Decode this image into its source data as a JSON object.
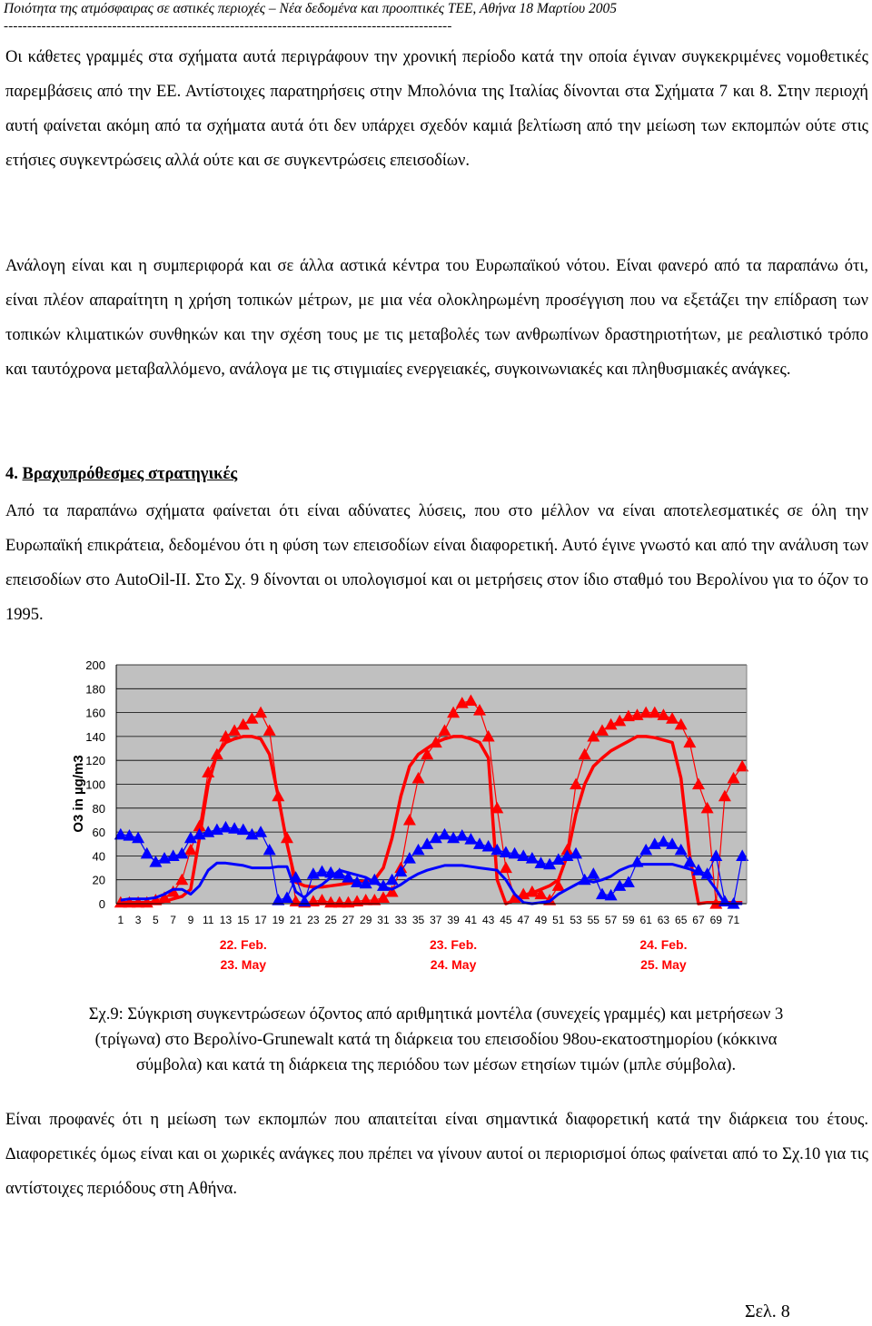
{
  "header": {
    "running_title": "Ποιότητα της ατμόσφαιρας σε αστικές περιοχές – Νέα δεδομένα και προοπτικές ΤΕΕ, Αθήνα 18 Μαρτίου 2005",
    "separator": "-----------------------------------------------------------------------------------------------"
  },
  "paragraphs": {
    "p1": "Οι κάθετες γραμμές στα σχήματα αυτά περιγράφουν την χρονική περίοδο κατά την οποία έγιναν συγκεκριμένες νομοθετικές παρεμβάσεις από την ΕΕ. Αντίστοιχες παρατηρήσεις στην Μπολόνια της Ιταλίας δίνονται στα Σχήματα 7 και 8. Στην περιοχή αυτή φαίνεται ακόμη από τα σχήματα αυτά ότι δεν υπάρχει σχεδόν καμιά βελτίωση από την μείωση των εκπομπών ούτε στις ετήσιες συγκεντρώσεις αλλά ούτε και σε συγκεντρώσεις επεισοδίων.",
    "p2": "Ανάλογη είναι και η συμπεριφορά και σε άλλα αστικά κέντρα του Ευρωπαϊκού νότου. Είναι φανερό από τα παραπάνω ότι, είναι πλέον απαραίτητη η χρήση τοπικών μέτρων, με μια νέα ολοκληρωμένη προσέγγιση που να εξετάζει την επίδραση των τοπικών κλιματικών συνθηκών και την σχέση τους με τις μεταβολές των ανθρωπίνων δραστηριοτήτων, με ρεαλιστικό τρόπο και ταυτόχρονα μεταβαλλόμενο, ανάλογα με τις στιγμιαίες ενεργειακές, συγκοινωνιακές και πληθυσμιακές ανάγκες.",
    "p3": "Από τα παραπάνω σχήματα φαίνεται ότι είναι αδύνατες λύσεις, που στο μέλλον να είναι αποτελεσματικές σε όλη την Ευρωπαϊκή επικράτεια, δεδομένου ότι η φύση των επεισοδίων είναι διαφορετική. Αυτό έγινε γνωστό και από την ανάλυση των επεισοδίων στο AutoOil-II. Στο Σχ. 9 δίνονται οι υπολογισμοί και οι μετρήσεις στον ίδιο σταθμό του Βερολίνου για το όζον το 1995.",
    "p4": "Είναι προφανές ότι η μείωση των εκπομπών που απαιτείται είναι σημαντικά διαφορετική κατά την διάρκεια του έτους. ∆ιαφορετικές όμως είναι και οι χωρικές ανάγκες που πρέπει να γίνουν αυτοί οι περιορισμοί όπως φαίνεται από το Σχ.10 για τις αντίστοιχες περιόδους στη Αθήνα."
  },
  "section": {
    "number": "4.",
    "title": "Βραχυπρόθεσμες στρατηγικές"
  },
  "figure": {
    "caption_line1": "Σχ.9: Σύγκριση συγκεντρώσεων  όζοντος από αριθμητικά μοντέλα (συνεχείς γραμμές) και μετρήσεων 3",
    "caption_line2": "(τρίγωνα) στο Βερολίνο-Grunewalt κατά τη διάρκεια του επεισοδίου 98ου-εκατοστημορίου (κόκκινα",
    "caption_line3": "σύμβολα) και κατά τη διάρκεια της περιόδου των μέσων ετησίων τιμών (μπλε σύμβολα)."
  },
  "page_number": "Σελ. 8",
  "colors": {
    "red": "#ff0000",
    "blue": "#0000ff",
    "plot_bg": "#c0c0c0"
  },
  "chart_data": {
    "type": "line",
    "title": "",
    "ylabel": "O3 in µg/m3",
    "xlabel": "",
    "ylim": [
      0,
      200
    ],
    "y_ticks": [
      0,
      20,
      40,
      60,
      80,
      100,
      120,
      140,
      160,
      180,
      200
    ],
    "x_tick_labels": [
      "1",
      "3",
      "5",
      "7",
      "9",
      "11",
      "13",
      "15",
      "17",
      "19",
      "21",
      "23",
      "25",
      "27",
      "29",
      "31",
      "33",
      "35",
      "37",
      "39",
      "41",
      "43",
      "45",
      "47",
      "49",
      "51",
      "53",
      "55",
      "57",
      "59",
      "61",
      "63",
      "65",
      "67",
      "69",
      "71"
    ],
    "date_labels": [
      {
        "x": 15,
        "red": "22. Feb.",
        "blue": "23. May"
      },
      {
        "x": 39,
        "red": "23. Feb.",
        "blue": "24. May"
      },
      {
        "x": 63,
        "red": "24. Feb.",
        "blue": "25. May"
      }
    ],
    "x": [
      1,
      2,
      3,
      4,
      5,
      6,
      7,
      8,
      9,
      10,
      11,
      12,
      13,
      14,
      15,
      16,
      17,
      18,
      19,
      20,
      21,
      22,
      23,
      24,
      25,
      26,
      27,
      28,
      29,
      30,
      31,
      32,
      33,
      34,
      35,
      36,
      37,
      38,
      39,
      40,
      41,
      42,
      43,
      44,
      45,
      46,
      47,
      48,
      49,
      50,
      51,
      52,
      53,
      54,
      55,
      56,
      57,
      58,
      59,
      60,
      61,
      62,
      63,
      64,
      65,
      66,
      67,
      68,
      69,
      70,
      71,
      72
    ],
    "series": [
      {
        "name": "red model",
        "color": "#ff0000",
        "style": "line",
        "width": 3.5,
        "values": [
          1,
          1,
          1,
          1,
          1,
          2,
          4,
          6,
          12,
          55,
          100,
          125,
          135,
          138,
          140,
          140,
          138,
          125,
          90,
          50,
          18,
          15,
          14,
          14,
          15,
          16,
          17,
          18,
          19,
          20,
          30,
          55,
          90,
          115,
          125,
          130,
          135,
          138,
          140,
          140,
          138,
          135,
          122,
          20,
          0,
          3,
          6,
          9,
          12,
          15,
          20,
          40,
          75,
          100,
          115,
          122,
          128,
          132,
          136,
          140,
          140,
          139,
          137,
          135,
          105,
          40,
          0,
          1,
          1,
          1,
          1,
          1
        ]
      },
      {
        "name": "red measured",
        "color": "#ff0000",
        "style": "triangle-line",
        "width": 1.2,
        "values": [
          1,
          1,
          1,
          1,
          3,
          5,
          10,
          20,
          45,
          65,
          110,
          125,
          140,
          145,
          150,
          155,
          160,
          145,
          90,
          55,
          2,
          1,
          2,
          3,
          1,
          1,
          1,
          2,
          3,
          3,
          5,
          10,
          30,
          70,
          105,
          125,
          135,
          145,
          160,
          168,
          170,
          162,
          140,
          80,
          30,
          5,
          8,
          10,
          8,
          3,
          15,
          45,
          100,
          125,
          140,
          145,
          150,
          153,
          157,
          158,
          160,
          160,
          158,
          155,
          150,
          135,
          100,
          80,
          0,
          90,
          105,
          115
        ]
      },
      {
        "name": "blue model",
        "color": "#0000ff",
        "style": "line",
        "width": 3,
        "values": [
          3,
          4,
          4,
          4,
          5,
          8,
          12,
          12,
          8,
          15,
          28,
          34,
          34,
          33,
          32,
          30,
          30,
          30,
          31,
          31,
          10,
          5,
          12,
          16,
          22,
          28,
          26,
          24,
          22,
          18,
          14,
          12,
          16,
          21,
          25,
          28,
          30,
          32,
          32,
          32,
          31,
          30,
          29,
          28,
          20,
          8,
          1,
          0,
          1,
          2,
          8,
          12,
          16,
          20,
          18,
          20,
          23,
          28,
          31,
          33,
          33,
          33,
          33,
          33,
          31,
          29,
          26,
          22,
          12,
          0,
          0,
          0
        ]
      },
      {
        "name": "blue measured",
        "color": "#0000ff",
        "style": "triangle-line",
        "width": 1.2,
        "values": [
          58,
          57,
          55,
          42,
          35,
          38,
          40,
          42,
          55,
          58,
          60,
          62,
          64,
          63,
          62,
          58,
          60,
          45,
          3,
          5,
          22,
          2,
          25,
          27,
          26,
          25,
          22,
          18,
          17,
          20,
          15,
          20,
          27,
          38,
          45,
          50,
          55,
          58,
          55,
          57,
          54,
          50,
          48,
          45,
          43,
          42,
          40,
          38,
          34,
          33,
          37,
          40,
          42,
          20,
          25,
          8,
          7,
          15,
          18,
          35,
          45,
          50,
          52,
          50,
          45,
          35,
          28,
          25,
          40,
          2,
          0,
          40
        ]
      }
    ]
  }
}
